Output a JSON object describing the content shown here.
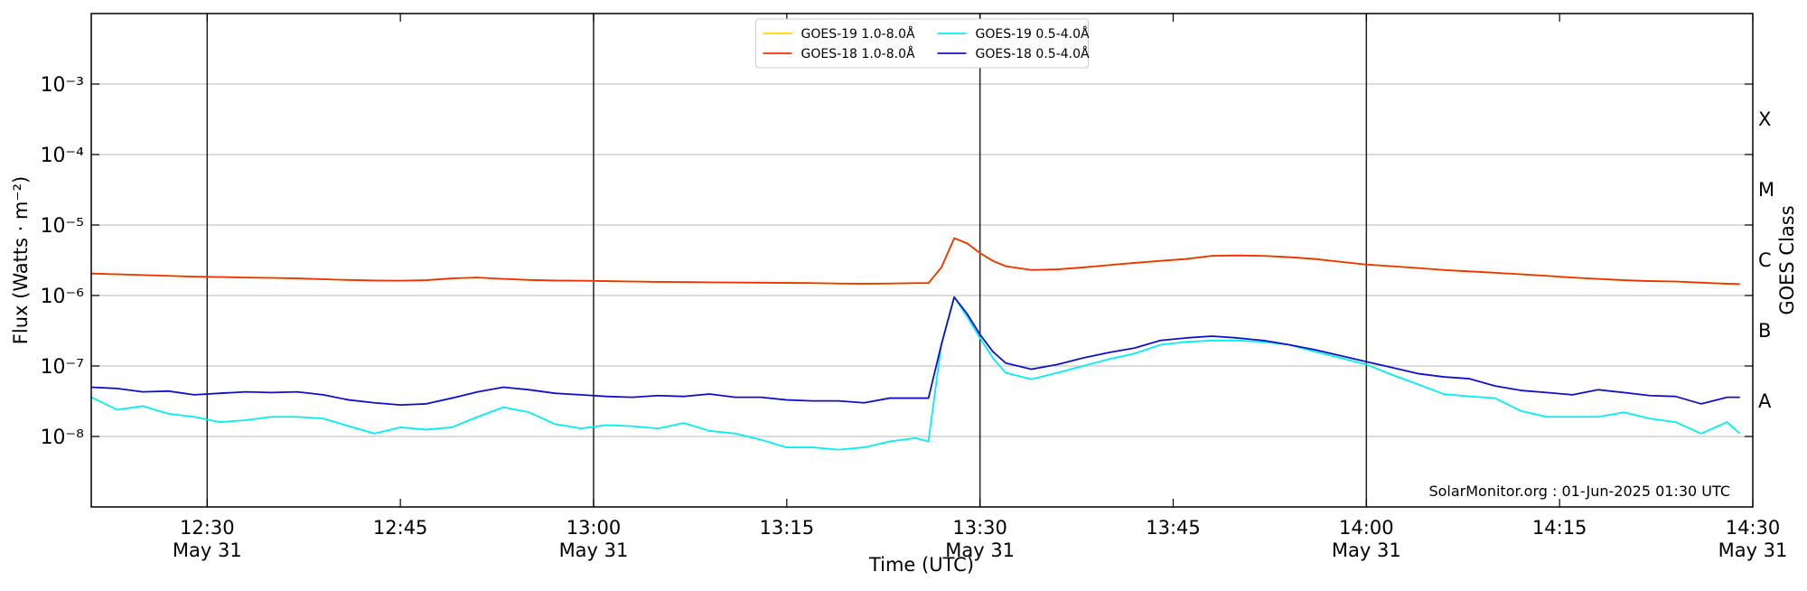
{
  "chart_data": {
    "type": "line",
    "ylabel": "Flux (Watts · m⁻²)",
    "xlabel": "Time (UTC)",
    "y2label": "GOES Class",
    "annotation": "SolarMonitor.org : 01-Jun-2025 01:30 UTC",
    "log_y": true,
    "grid": true,
    "legend": "upper center",
    "x": [
      "12:21",
      "12:23",
      "12:25",
      "12:27",
      "12:29",
      "12:31",
      "12:33",
      "12:35",
      "12:37",
      "12:39",
      "12:41",
      "12:43",
      "12:45",
      "12:47",
      "12:49",
      "12:51",
      "12:53",
      "12:55",
      "12:57",
      "12:59",
      "13:01",
      "13:03",
      "13:05",
      "13:07",
      "13:09",
      "13:11",
      "13:13",
      "13:15",
      "13:17",
      "13:19",
      "13:21",
      "13:23",
      "13:25",
      "13:26",
      "13:27",
      "13:28",
      "13:29",
      "13:30",
      "13:31",
      "13:32",
      "13:34",
      "13:36",
      "13:38",
      "13:40",
      "13:42",
      "13:44",
      "13:46",
      "13:48",
      "13:50",
      "13:52",
      "13:54",
      "13:56",
      "13:58",
      "14:00",
      "14:02",
      "14:04",
      "14:06",
      "14:08",
      "14:10",
      "14:12",
      "14:14",
      "14:16",
      "14:18",
      "14:20",
      "14:22",
      "14:24",
      "14:26",
      "14:28",
      "14:29"
    ],
    "series": [
      {
        "name": "GOES-19 1.0-8.0Å",
        "color": "#ffd700",
        "values": [
          2.05e-06,
          2e-06,
          1.95e-06,
          1.9e-06,
          1.85e-06,
          1.83e-06,
          1.8e-06,
          1.78e-06,
          1.75e-06,
          1.7e-06,
          1.66e-06,
          1.63e-06,
          1.62e-06,
          1.65e-06,
          1.75e-06,
          1.8e-06,
          1.72e-06,
          1.66e-06,
          1.63e-06,
          1.62e-06,
          1.6e-06,
          1.58e-06,
          1.56e-06,
          1.55e-06,
          1.54e-06,
          1.53e-06,
          1.52e-06,
          1.51e-06,
          1.5e-06,
          1.48e-06,
          1.47e-06,
          1.48e-06,
          1.5e-06,
          1.5e-06,
          2.5e-06,
          6.5e-06,
          5.5e-06,
          4e-06,
          3.1e-06,
          2.6e-06,
          2.3e-06,
          2.35e-06,
          2.5e-06,
          2.7e-06,
          2.9e-06,
          3.1e-06,
          3.3e-06,
          3.65e-06,
          3.7e-06,
          3.65e-06,
          3.5e-06,
          3.3e-06,
          3e-06,
          2.75e-06,
          2.6e-06,
          2.45e-06,
          2.3e-06,
          2.2e-06,
          2.1e-06,
          2e-06,
          1.9e-06,
          1.8e-06,
          1.72e-06,
          1.65e-06,
          1.6e-06,
          1.58e-06,
          1.52e-06,
          1.47e-06,
          1.45e-06
        ]
      },
      {
        "name": "GOES-18 1.0-8.0Å",
        "color": "#ee3300",
        "values": [
          2.05e-06,
          2e-06,
          1.95e-06,
          1.9e-06,
          1.85e-06,
          1.83e-06,
          1.8e-06,
          1.78e-06,
          1.75e-06,
          1.7e-06,
          1.66e-06,
          1.63e-06,
          1.62e-06,
          1.65e-06,
          1.75e-06,
          1.8e-06,
          1.72e-06,
          1.66e-06,
          1.63e-06,
          1.62e-06,
          1.6e-06,
          1.58e-06,
          1.56e-06,
          1.55e-06,
          1.54e-06,
          1.53e-06,
          1.52e-06,
          1.51e-06,
          1.5e-06,
          1.48e-06,
          1.47e-06,
          1.48e-06,
          1.5e-06,
          1.5e-06,
          2.5e-06,
          6.5e-06,
          5.5e-06,
          4e-06,
          3.1e-06,
          2.6e-06,
          2.3e-06,
          2.35e-06,
          2.5e-06,
          2.7e-06,
          2.9e-06,
          3.1e-06,
          3.3e-06,
          3.65e-06,
          3.7e-06,
          3.65e-06,
          3.5e-06,
          3.3e-06,
          3e-06,
          2.75e-06,
          2.6e-06,
          2.45e-06,
          2.3e-06,
          2.2e-06,
          2.1e-06,
          2e-06,
          1.9e-06,
          1.8e-06,
          1.72e-06,
          1.65e-06,
          1.6e-06,
          1.58e-06,
          1.52e-06,
          1.47e-06,
          1.45e-06
        ]
      },
      {
        "name": "GOES-19 0.5-4.0Å",
        "color": "#00f0f0",
        "values": [
          3.6e-08,
          2.4e-08,
          2.7e-08,
          2.1e-08,
          1.9e-08,
          1.6e-08,
          1.7e-08,
          1.9e-08,
          1.9e-08,
          1.8e-08,
          1.4e-08,
          1.1e-08,
          1.35e-08,
          1.25e-08,
          1.35e-08,
          1.9e-08,
          2.6e-08,
          2.2e-08,
          1.5e-08,
          1.3e-08,
          1.45e-08,
          1.4e-08,
          1.3e-08,
          1.55e-08,
          1.2e-08,
          1.1e-08,
          9e-09,
          7e-09,
          7e-09,
          6.5e-09,
          7e-09,
          8.5e-09,
          9.5e-09,
          8.5e-09,
          2e-07,
          9.5e-07,
          5e-07,
          2.5e-07,
          1.3e-07,
          8e-08,
          6.5e-08,
          8e-08,
          1e-07,
          1.25e-07,
          1.5e-07,
          2e-07,
          2.2e-07,
          2.3e-07,
          2.3e-07,
          2.2e-07,
          2e-07,
          1.6e-07,
          1.3e-07,
          1.05e-07,
          7.5e-08,
          5.5e-08,
          4e-08,
          3.7e-08,
          3.5e-08,
          2.3e-08,
          1.9e-08,
          1.9e-08,
          1.9e-08,
          2.2e-08,
          1.8e-08,
          1.6e-08,
          1.1e-08,
          1.6e-08,
          1.1e-08
        ]
      },
      {
        "name": "GOES-18 0.5-4.0Å",
        "color": "#1010cc",
        "values": [
          5e-08,
          4.8e-08,
          4.3e-08,
          4.4e-08,
          3.9e-08,
          4.1e-08,
          4.3e-08,
          4.2e-08,
          4.3e-08,
          3.9e-08,
          3.3e-08,
          3e-08,
          2.8e-08,
          2.9e-08,
          3.5e-08,
          4.3e-08,
          5e-08,
          4.6e-08,
          4.1e-08,
          3.9e-08,
          3.7e-08,
          3.6e-08,
          3.8e-08,
          3.7e-08,
          4e-08,
          3.6e-08,
          3.6e-08,
          3.3e-08,
          3.2e-08,
          3.2e-08,
          3e-08,
          3.5e-08,
          3.5e-08,
          3.5e-08,
          2e-07,
          9.5e-07,
          5.5e-07,
          2.8e-07,
          1.6e-07,
          1.1e-07,
          9e-08,
          1.05e-07,
          1.3e-07,
          1.55e-07,
          1.8e-07,
          2.3e-07,
          2.5e-07,
          2.65e-07,
          2.5e-07,
          2.3e-07,
          2e-07,
          1.7e-07,
          1.4e-07,
          1.15e-07,
          9.5e-08,
          7.8e-08,
          7e-08,
          6.6e-08,
          5.2e-08,
          4.5e-08,
          4.2e-08,
          3.9e-08,
          4.6e-08,
          4.2e-08,
          3.8e-08,
          3.7e-08,
          2.9e-08,
          3.6e-08,
          3.6e-08
        ]
      }
    ],
    "xlim": [
      "12:21",
      "14:30"
    ],
    "xticks": [
      {
        "value": "12:30",
        "label": "12:30",
        "sublabel": "May 31"
      },
      {
        "value": "12:45",
        "label": "12:45"
      },
      {
        "value": "13:00",
        "label": "13:00",
        "sublabel": "May 31"
      },
      {
        "value": "13:15",
        "label": "13:15"
      },
      {
        "value": "13:30",
        "label": "13:30",
        "sublabel": "May 31"
      },
      {
        "value": "13:45",
        "label": "13:45"
      },
      {
        "value": "14:00",
        "label": "14:00",
        "sublabel": "May 31"
      },
      {
        "value": "14:15",
        "label": "14:15"
      },
      {
        "value": "14:30",
        "label": "14:30",
        "sublabel": "May 31"
      }
    ],
    "vlines": [
      "12:30",
      "13:00",
      "13:30",
      "14:00"
    ],
    "ylim": [
      1e-09,
      0.01
    ],
    "yticks": [
      {
        "value": 1e-08,
        "label": "10⁻⁸"
      },
      {
        "value": 1e-07,
        "label": "10⁻⁷"
      },
      {
        "value": 1e-06,
        "label": "10⁻⁶"
      },
      {
        "value": 1e-05,
        "label": "10⁻⁵"
      },
      {
        "value": 0.0001,
        "label": "10⁻⁴"
      },
      {
        "value": 0.001,
        "label": "10⁻³"
      }
    ],
    "y2lim": [
      1e-09,
      0.01
    ],
    "y2ticks": [
      {
        "value": 3.16e-08,
        "label": "A"
      },
      {
        "value": 3.16e-07,
        "label": "B"
      },
      {
        "value": 3.16e-06,
        "label": "C"
      },
      {
        "value": 3.16e-05,
        "label": "M"
      },
      {
        "value": 0.000316,
        "label": "X"
      }
    ]
  }
}
